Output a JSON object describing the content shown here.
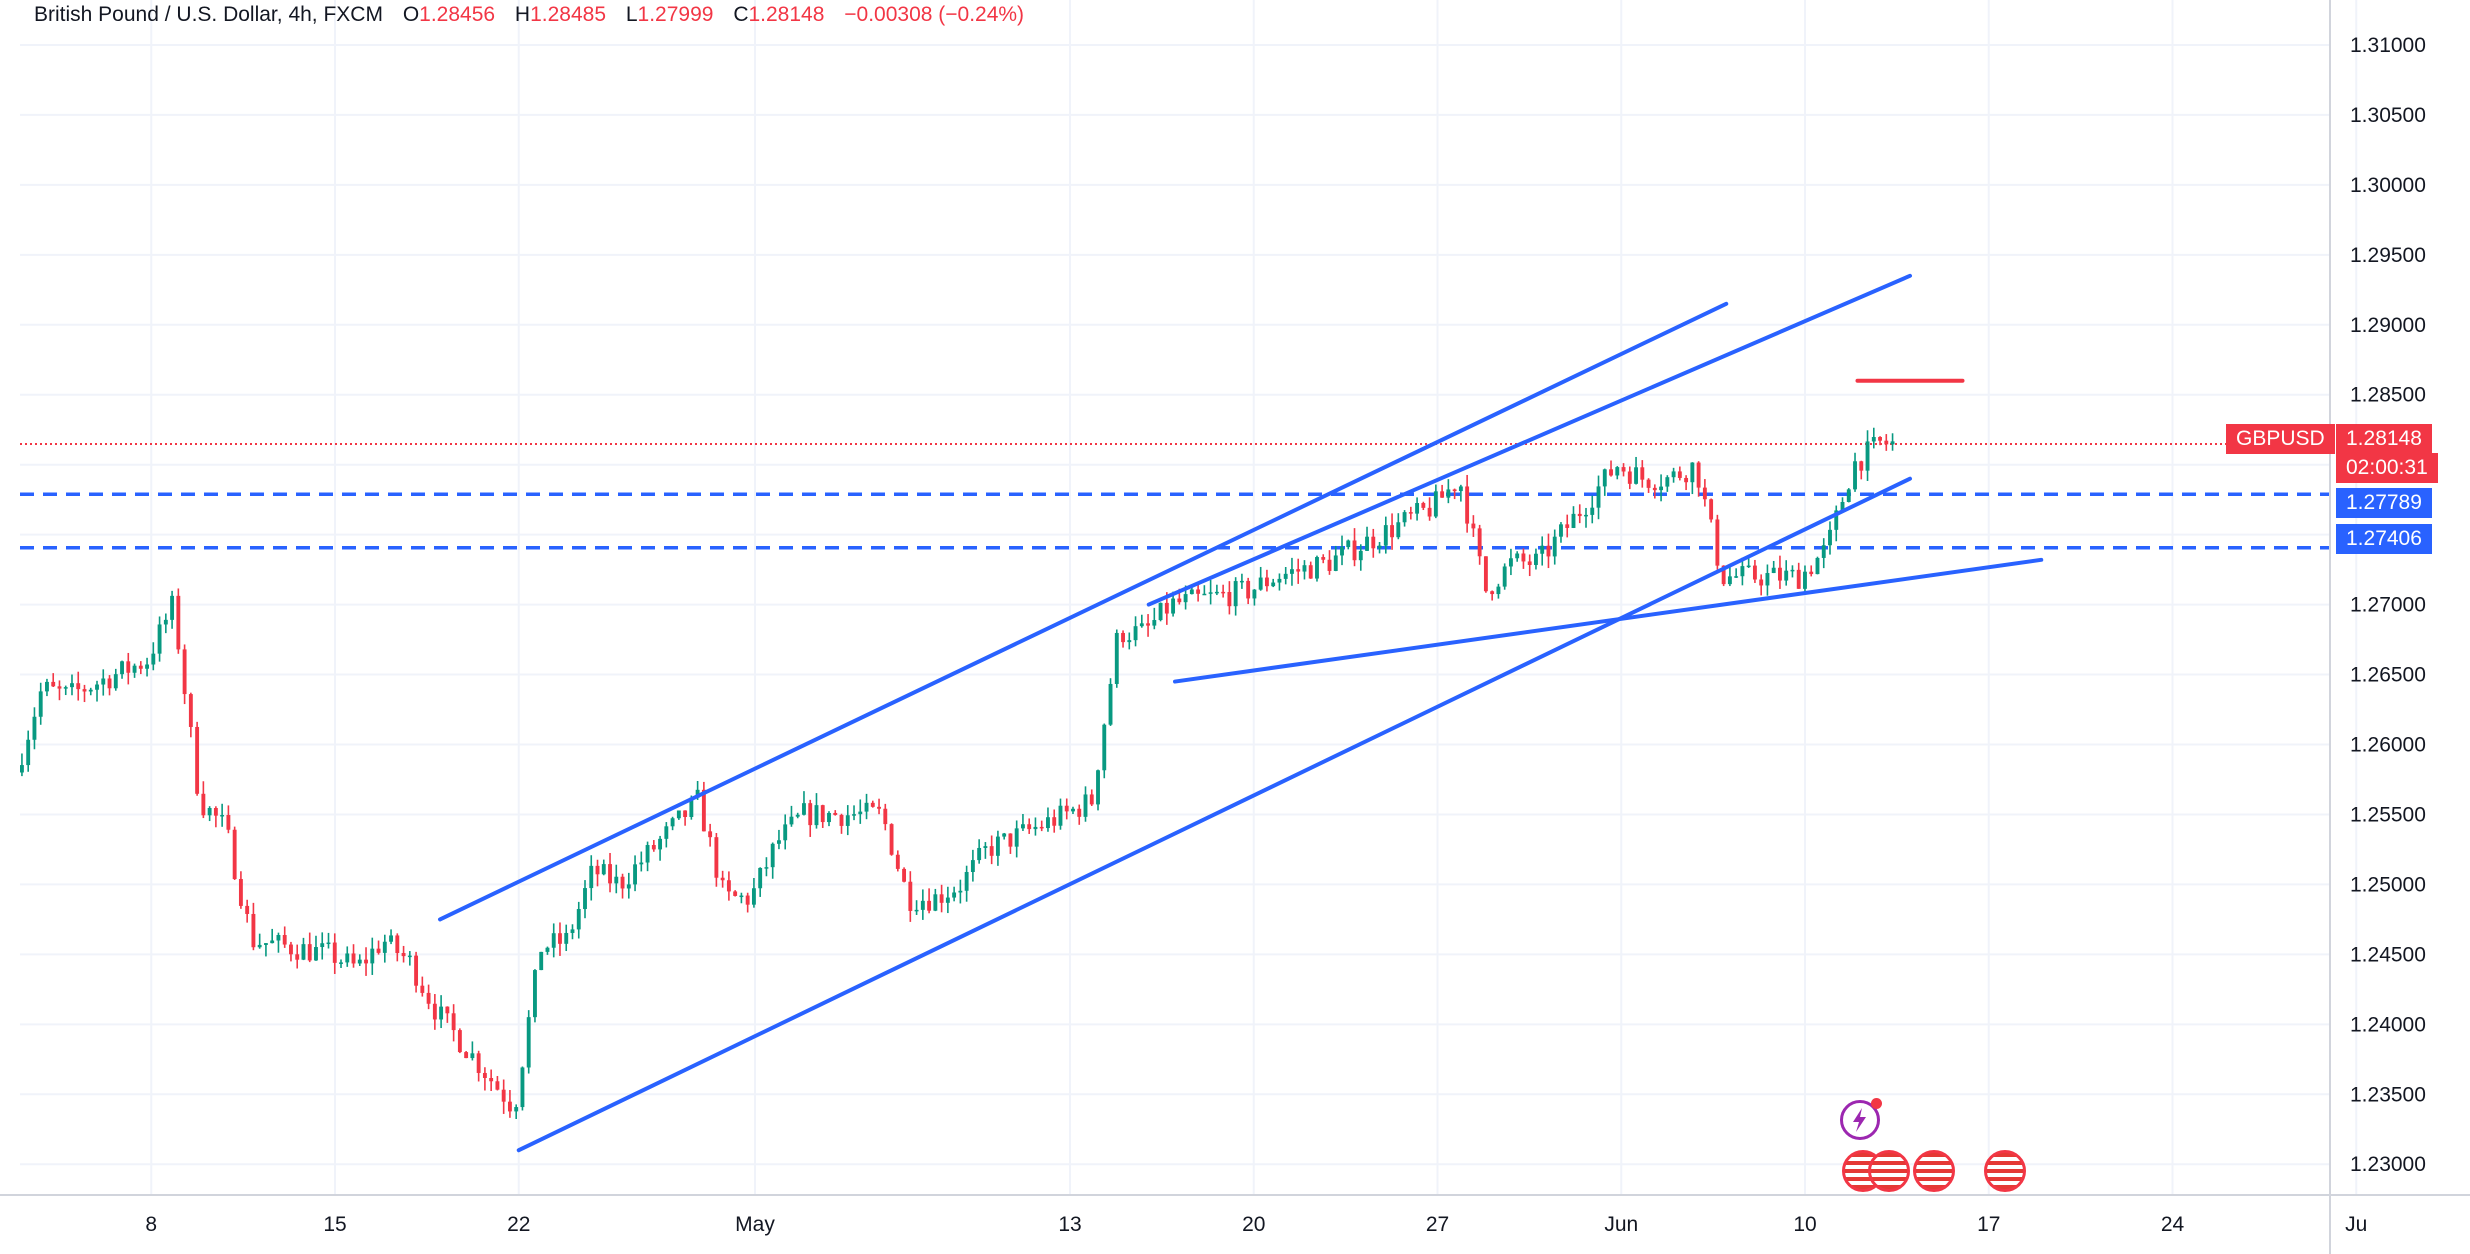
{
  "header": {
    "symbol": "British Pound / U.S. Dollar, 4h, FXCM",
    "o_label": "O",
    "o_value": "1.28456",
    "h_label": "H",
    "h_value": "1.28485",
    "l_label": "L",
    "l_value": "1.27999",
    "c_label": "C",
    "c_value": "1.28148",
    "change": "−0.00308 (−0.24%)"
  },
  "price_tags": {
    "ticker": "GBPUSD",
    "last": "1.28148",
    "countdown": "02:00:31",
    "level1": "1.27789",
    "level2": "1.27406"
  },
  "colors": {
    "up": "#089981",
    "down": "#f23645",
    "trend": "#2962ff",
    "resistance": "#f23645",
    "grid": "#f0f3fa",
    "level_tag": "#2962ff"
  },
  "chart_data": {
    "type": "candlestick",
    "timeframe": "4h",
    "y_ticks": [
      1.31,
      1.305,
      1.3,
      1.295,
      1.29,
      1.285,
      1.28,
      1.275,
      1.27,
      1.265,
      1.26,
      1.255,
      1.25,
      1.245,
      1.24,
      1.235,
      1.23
    ],
    "y_tick_labels": [
      "1.31000",
      "1.30500",
      "1.30000",
      "1.29500",
      "1.29000",
      "1.28500",
      "1.28000",
      "1.27500",
      "1.27000",
      "1.26500",
      "1.26000",
      "1.25500",
      "1.25000",
      "1.24500",
      "1.24000",
      "1.23500",
      "1.23000"
    ],
    "ylim": [
      1.2278,
      1.3125
    ],
    "x_ticks": [
      {
        "label": "8",
        "date": "2024-04-08"
      },
      {
        "label": "15",
        "date": "2024-04-15"
      },
      {
        "label": "22",
        "date": "2024-04-22"
      },
      {
        "label": "May",
        "date": "2024-05-01"
      },
      {
        "label": "13",
        "date": "2024-05-13"
      },
      {
        "label": "20",
        "date": "2024-05-20"
      },
      {
        "label": "27",
        "date": "2024-05-27"
      },
      {
        "label": "Jun",
        "date": "2024-06-03"
      },
      {
        "label": "10",
        "date": "2024-06-10"
      },
      {
        "label": "17",
        "date": "2024-06-17"
      },
      {
        "label": "24",
        "date": "2024-06-24"
      },
      {
        "label": "Ju",
        "date": "2024-07-01"
      }
    ],
    "xlim": [
      "2024-04-03",
      "2024-06-30"
    ],
    "path_points": [
      [
        "2024-04-03",
        1.258
      ],
      [
        "2024-04-04",
        1.264
      ],
      [
        "2024-04-05",
        1.2635
      ],
      [
        "2024-04-08",
        1.266
      ],
      [
        "2024-04-09",
        1.27
      ],
      [
        "2024-04-10",
        1.256
      ],
      [
        "2024-04-11",
        1.254
      ],
      [
        "2024-04-12",
        1.246
      ],
      [
        "2024-04-15",
        1.245
      ],
      [
        "2024-04-16",
        1.244
      ],
      [
        "2024-04-17",
        1.246
      ],
      [
        "2024-04-18",
        1.2445
      ],
      [
        "2024-04-19",
        1.241
      ],
      [
        "2024-04-22",
        1.234
      ],
      [
        "2024-04-23",
        1.2455
      ],
      [
        "2024-04-24",
        1.246
      ],
      [
        "2024-04-25",
        1.251
      ],
      [
        "2024-04-26",
        1.25
      ],
      [
        "2024-04-29",
        1.256
      ],
      [
        "2024-04-30",
        1.249
      ],
      [
        "2024-05-01",
        1.249
      ],
      [
        "2024-05-02",
        1.253
      ],
      [
        "2024-05-03",
        1.255
      ],
      [
        "2024-05-06",
        1.255
      ],
      [
        "2024-05-07",
        1.249
      ],
      [
        "2024-05-08",
        1.249
      ],
      [
        "2024-05-09",
        1.25
      ],
      [
        "2024-05-10",
        1.2525
      ],
      [
        "2024-05-13",
        1.255
      ],
      [
        "2024-05-14",
        1.256
      ],
      [
        "2024-05-15",
        1.268
      ],
      [
        "2024-05-16",
        1.268
      ],
      [
        "2024-05-17",
        1.27
      ],
      [
        "2024-05-20",
        1.271
      ],
      [
        "2024-05-21",
        1.272
      ],
      [
        "2024-05-22",
        1.2725
      ],
      [
        "2024-05-23",
        1.273
      ],
      [
        "2024-05-24",
        1.274
      ],
      [
        "2024-05-27",
        1.277
      ],
      [
        "2024-05-28",
        1.279
      ],
      [
        "2024-05-29",
        1.271
      ],
      [
        "2024-05-30",
        1.273
      ],
      [
        "2024-05-31",
        1.273
      ],
      [
        "2024-06-03",
        1.28
      ],
      [
        "2024-06-04",
        1.279
      ],
      [
        "2024-06-05",
        1.279
      ],
      [
        "2024-06-06",
        1.28
      ],
      [
        "2024-06-07",
        1.272
      ],
      [
        "2024-06-10",
        1.272
      ],
      [
        "2024-06-11",
        1.274
      ],
      [
        "2024-06-12",
        1.28
      ],
      [
        "2024-06-13",
        1.2815
      ]
    ],
    "candle_count": 300,
    "last_close": 1.28148,
    "horizontal_levels": [
      1.27789,
      1.27406
    ],
    "resistance_level": 1.286,
    "trendlines": [
      {
        "start": [
          "2024-04-19",
          1.2475
        ],
        "end": [
          "2024-06-07",
          1.2915
        ]
      },
      {
        "start": [
          "2024-05-16",
          1.27
        ],
        "end": [
          "2024-06-14",
          1.2935
        ]
      },
      {
        "start": [
          "2024-04-22",
          1.231
        ],
        "end": [
          "2024-06-14",
          1.279
        ]
      },
      {
        "start": [
          "2024-05-17",
          1.2645
        ],
        "end": [
          "2024-06-19",
          1.2732
        ]
      }
    ],
    "resistance_segment": {
      "start": "2024-06-12",
      "end": "2024-06-16"
    }
  }
}
